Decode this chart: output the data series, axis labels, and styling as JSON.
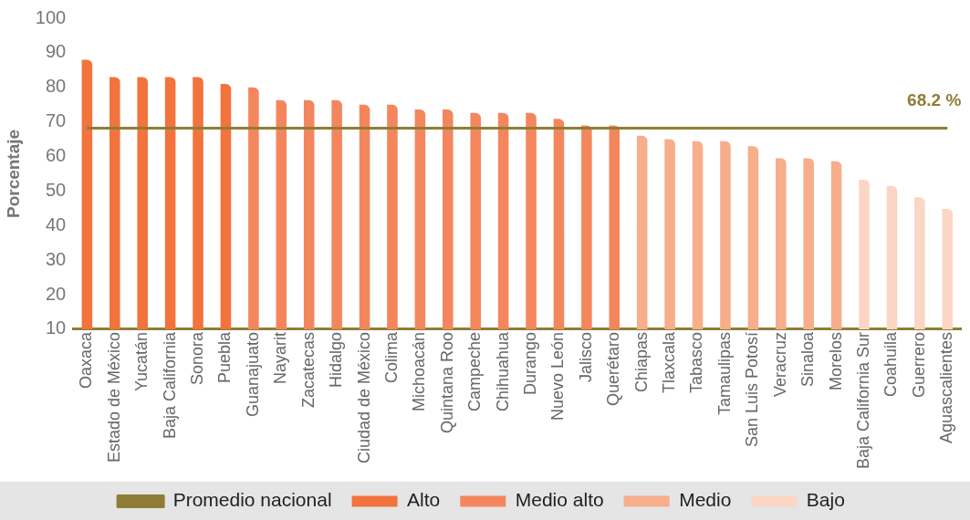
{
  "chart_data": {
    "type": "bar",
    "ylabel": "Porcentaje",
    "categories": [
      "Oaxaca",
      "Estado de México",
      "Yucatán",
      "Baja California",
      "Sonora",
      "Puebla",
      "Guanajuato",
      "Nayarit",
      "Zacatecas",
      "Hidalgo",
      "Ciudad de México",
      "Colima",
      "Michoacán",
      "Quintana Roo",
      "Campeche",
      "Chihuahua",
      "Durango",
      "Nuevo León",
      "Jalisco",
      "Querétaro",
      "Chiapas",
      "Tlaxcala",
      "Tabasco",
      "Tamaulipas",
      "San Luis Potosí",
      "Veracruz",
      "Sinaloa",
      "Morelos",
      "Baja California Sur",
      "Coahuila",
      "Guerrero",
      "Aguascalientes"
    ],
    "series": [
      {
        "name": "Alto",
        "color": "#f2733c",
        "values": [
          88,
          83,
          83,
          83,
          83,
          81,
          null,
          null,
          null,
          null,
          null,
          null,
          null,
          null,
          null,
          null,
          null,
          null,
          null,
          null,
          null,
          null,
          null,
          null,
          null,
          null,
          null,
          null,
          null,
          null,
          null,
          null
        ]
      },
      {
        "name": "Medio alto",
        "color": "#f4865e",
        "values": [
          null,
          null,
          null,
          null,
          null,
          null,
          80,
          76.3,
          76.3,
          76.3,
          75,
          75,
          73.6,
          73.6,
          72.6,
          72.6,
          72.6,
          70.9,
          69,
          69,
          null,
          null,
          null,
          null,
          null,
          null,
          null,
          null,
          null,
          null,
          null,
          null
        ]
      },
      {
        "name": "Medio",
        "color": "#f7ae8a",
        "values": [
          null,
          null,
          null,
          null,
          null,
          null,
          null,
          null,
          null,
          null,
          null,
          null,
          null,
          null,
          null,
          null,
          null,
          null,
          null,
          null,
          66,
          65,
          64.4,
          64.4,
          63,
          59.5,
          59.5,
          58.6,
          null,
          null,
          null,
          null
        ]
      },
      {
        "name": "Bajo",
        "color": "#fbd6c4",
        "values": [
          null,
          null,
          null,
          null,
          null,
          null,
          null,
          null,
          null,
          null,
          null,
          null,
          null,
          null,
          null,
          null,
          null,
          null,
          null,
          null,
          null,
          null,
          null,
          null,
          null,
          null,
          null,
          null,
          53.3,
          51.5,
          48.2,
          44.8
        ]
      },
      {
        "name": "Promedio nacional",
        "type": "line",
        "color": "#8f7d35",
        "values": [
          68.2,
          68.2,
          68.2,
          68.2,
          68.2,
          68.2,
          68.2,
          68.2,
          68.2,
          68.2,
          68.2,
          68.2,
          68.2,
          68.2,
          68.2,
          68.2,
          68.2,
          68.2,
          68.2,
          68.2,
          68.2,
          68.2,
          68.2,
          68.2,
          68.2,
          68.2,
          68.2,
          68.2,
          68.2,
          68.2,
          68.2,
          68.2
        ]
      }
    ],
    "annotations": [
      {
        "text": "68.2 %",
        "x": "Aguascalientes",
        "y": 68.2
      }
    ],
    "ylim": [
      10,
      100
    ],
    "yticks": [
      10,
      20,
      30,
      40,
      50,
      60,
      70,
      80,
      90,
      100
    ],
    "legend": "bottom"
  }
}
